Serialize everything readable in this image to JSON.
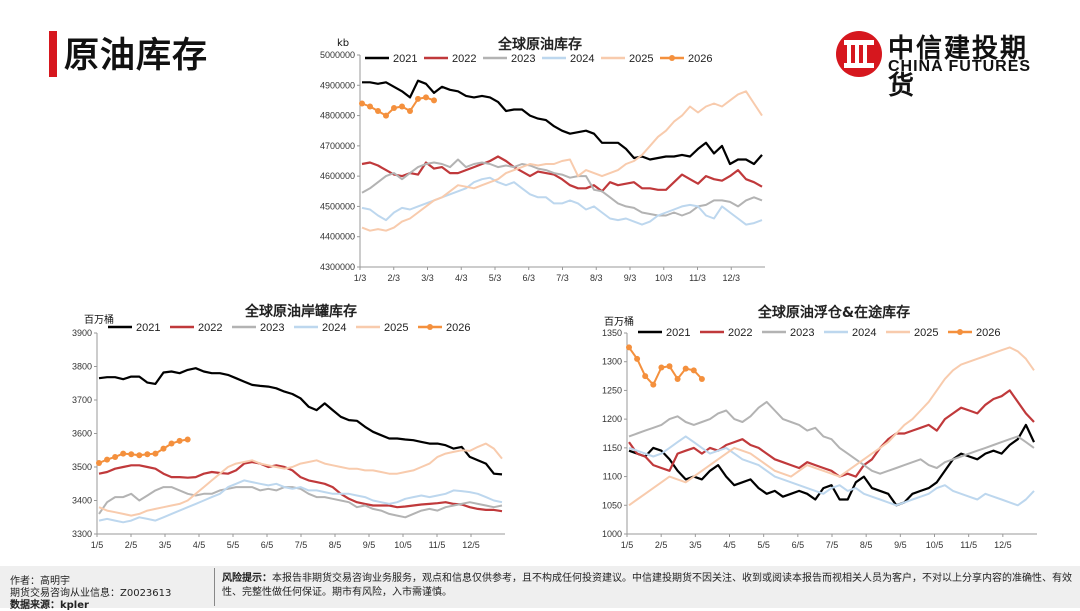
{
  "header": {
    "title": "原油库存"
  },
  "logo": {
    "cn": "中信建投期货",
    "en": "CHINA FUTURES"
  },
  "colors": {
    "2021": "#000000",
    "2022": "#c0393b",
    "2023": "#b3b3b3",
    "2024": "#bdd7ee",
    "2025": "#f8cbad",
    "2026": "#f4903d",
    "accent": "#d6171e"
  },
  "footer": {
    "author": "作者：高明宇",
    "license": "期货交易咨询从业信息：Z0023613",
    "source": "数据来源：kpler",
    "risk_label": "风险提示：",
    "risk_text": "本报告非期货交易咨询业务服务，观点和信息仅供参考，且不构成任何投资建议。中信建投期货不因关注、收到或阅读本报告而视相关人员为客户，不对以上分享内容的准确性、有效性、完整性做任何保证。期市有风险，入市需谨慎。"
  },
  "chart_data": [
    {
      "id": "global",
      "type": "line",
      "title": "全球原油库存",
      "unit": "kb",
      "ylim": [
        4300000,
        5000000
      ],
      "yticks": [
        "4300000",
        "4400000",
        "4500000",
        "4600000",
        "4700000",
        "4800000",
        "4900000",
        "5000000"
      ],
      "xticks": [
        "1/3",
        "2/3",
        "3/3",
        "4/3",
        "5/3",
        "6/3",
        "7/3",
        "8/3",
        "9/3",
        "10/3",
        "11/3",
        "12/3"
      ],
      "legend": [
        "2021",
        "2022",
        "2023",
        "2024",
        "2025",
        "2026"
      ],
      "legend_position": "top",
      "series": [
        {
          "name": "2021",
          "values": [
            4910000,
            4910000,
            4905000,
            4910000,
            4895000,
            4880000,
            4860000,
            4915000,
            4905000,
            4875000,
            4895000,
            4885000,
            4880000,
            4865000,
            4860000,
            4865000,
            4860000,
            4845000,
            4815000,
            4820000,
            4820000,
            4800000,
            4790000,
            4785000,
            4765000,
            4750000,
            4740000,
            4745000,
            4750000,
            4740000,
            4710000,
            4710000,
            4710000,
            4690000,
            4660000,
            4665000,
            4655000,
            4660000,
            4665000,
            4665000,
            4670000,
            4665000,
            4690000,
            4710000,
            4675000,
            4700000,
            4640000,
            4655000,
            4655000,
            4640000,
            4670000
          ]
        },
        {
          "name": "2022",
          "values": [
            4640000,
            4645000,
            4635000,
            4620000,
            4605000,
            4600000,
            4610000,
            4605000,
            4645000,
            4625000,
            4630000,
            4610000,
            4610000,
            4620000,
            4630000,
            4640000,
            4650000,
            4665000,
            4650000,
            4630000,
            4615000,
            4600000,
            4615000,
            4610000,
            4605000,
            4590000,
            4570000,
            4560000,
            4560000,
            4570000,
            4550000,
            4580000,
            4570000,
            4575000,
            4580000,
            4560000,
            4560000,
            4555000,
            4555000,
            4580000,
            4605000,
            4590000,
            4575000,
            4600000,
            4590000,
            4585000,
            4600000,
            4620000,
            4590000,
            4580000,
            4565000
          ]
        },
        {
          "name": "2023",
          "values": [
            4545000,
            4560000,
            4580000,
            4600000,
            4610000,
            4590000,
            4610000,
            4630000,
            4640000,
            4645000,
            4640000,
            4630000,
            4655000,
            4630000,
            4640000,
            4645000,
            4640000,
            4630000,
            4635000,
            4630000,
            4640000,
            4635000,
            4625000,
            4620000,
            4610000,
            4605000,
            4595000,
            4600000,
            4600000,
            4555000,
            4550000,
            4530000,
            4510000,
            4500000,
            4495000,
            4480000,
            4475000,
            4470000,
            4470000,
            4480000,
            4470000,
            4480000,
            4500000,
            4505000,
            4520000,
            4520000,
            4515000,
            4500000,
            4520000,
            4530000,
            4520000
          ]
        },
        {
          "name": "2024",
          "values": [
            4495000,
            4490000,
            4470000,
            4455000,
            4480000,
            4495000,
            4490000,
            4500000,
            4510000,
            4520000,
            4530000,
            4540000,
            4550000,
            4560000,
            4580000,
            4590000,
            4595000,
            4580000,
            4570000,
            4580000,
            4560000,
            4540000,
            4530000,
            4530000,
            4510000,
            4510000,
            4520000,
            4510000,
            4490000,
            4500000,
            4480000,
            4460000,
            4455000,
            4460000,
            4450000,
            4440000,
            4450000,
            4470000,
            4480000,
            4490000,
            4500000,
            4505000,
            4500000,
            4470000,
            4460000,
            4500000,
            4480000,
            4460000,
            4440000,
            4445000,
            4455000
          ]
        },
        {
          "name": "2025",
          "values": [
            4430000,
            4420000,
            4425000,
            4420000,
            4430000,
            4450000,
            4460000,
            4480000,
            4500000,
            4520000,
            4530000,
            4550000,
            4570000,
            4565000,
            4560000,
            4570000,
            4580000,
            4590000,
            4610000,
            4620000,
            4630000,
            4640000,
            4635000,
            4640000,
            4640000,
            4650000,
            4655000,
            4600000,
            4620000,
            4610000,
            4600000,
            4610000,
            4620000,
            4640000,
            4650000,
            4670000,
            4700000,
            4730000,
            4750000,
            4780000,
            4800000,
            4830000,
            4810000,
            4830000,
            4840000,
            4830000,
            4850000,
            4870000,
            4880000,
            4840000,
            4800000
          ]
        },
        {
          "name": "2026",
          "values": [
            4840000,
            4830000,
            4815000,
            4800000,
            4825000,
            4830000,
            4815000,
            4855000,
            4860000,
            4850000
          ]
        }
      ]
    },
    {
      "id": "tank",
      "type": "line",
      "title": "全球原油岸罐库存",
      "unit": "百万桶",
      "ylim": [
        3300,
        3900
      ],
      "yticks": [
        "3300",
        "3400",
        "3500",
        "3600",
        "3700",
        "3800",
        "3900"
      ],
      "xticks": [
        "1/5",
        "2/5",
        "3/5",
        "4/5",
        "5/5",
        "6/5",
        "7/5",
        "8/5",
        "9/5",
        "10/5",
        "11/5",
        "12/5"
      ],
      "legend": [
        "2021",
        "2022",
        "2023",
        "2024",
        "2025",
        "2026"
      ],
      "legend_position": "top",
      "series": [
        {
          "name": "2021",
          "values": [
            3765,
            3768,
            3768,
            3762,
            3770,
            3770,
            3752,
            3748,
            3782,
            3785,
            3780,
            3790,
            3795,
            3785,
            3780,
            3780,
            3775,
            3765,
            3755,
            3745,
            3742,
            3740,
            3735,
            3725,
            3718,
            3705,
            3680,
            3670,
            3690,
            3670,
            3650,
            3640,
            3638,
            3620,
            3605,
            3595,
            3585,
            3585,
            3582,
            3580,
            3575,
            3570,
            3570,
            3565,
            3555,
            3560,
            3530,
            3520,
            3510,
            3480,
            3478
          ]
        },
        {
          "name": "2022",
          "values": [
            3480,
            3485,
            3495,
            3500,
            3505,
            3505,
            3500,
            3495,
            3480,
            3470,
            3470,
            3468,
            3470,
            3480,
            3485,
            3482,
            3480,
            3490,
            3510,
            3515,
            3510,
            3500,
            3505,
            3500,
            3490,
            3470,
            3460,
            3455,
            3450,
            3440,
            3420,
            3405,
            3395,
            3390,
            3385,
            3385,
            3385,
            3380,
            3382,
            3385,
            3388,
            3390,
            3392,
            3395,
            3390,
            3388,
            3380,
            3375,
            3372,
            3372,
            3368
          ]
        },
        {
          "name": "2023",
          "values": [
            3360,
            3395,
            3410,
            3410,
            3420,
            3400,
            3415,
            3430,
            3440,
            3440,
            3430,
            3420,
            3415,
            3420,
            3420,
            3430,
            3435,
            3440,
            3440,
            3440,
            3430,
            3435,
            3430,
            3440,
            3440,
            3435,
            3420,
            3410,
            3410,
            3405,
            3400,
            3395,
            3380,
            3385,
            3375,
            3370,
            3360,
            3355,
            3350,
            3360,
            3370,
            3375,
            3370,
            3380,
            3385,
            3390,
            3395,
            3390,
            3385,
            3380,
            3385
          ]
        },
        {
          "name": "2024",
          "values": [
            3340,
            3345,
            3340,
            3335,
            3340,
            3350,
            3345,
            3340,
            3350,
            3360,
            3370,
            3380,
            3390,
            3400,
            3410,
            3420,
            3440,
            3450,
            3460,
            3455,
            3450,
            3445,
            3450,
            3440,
            3435,
            3440,
            3430,
            3430,
            3425,
            3420,
            3420,
            3420,
            3415,
            3410,
            3400,
            3395,
            3390,
            3395,
            3405,
            3410,
            3415,
            3410,
            3415,
            3420,
            3430,
            3428,
            3425,
            3420,
            3410,
            3400,
            3395
          ]
        },
        {
          "name": "2025",
          "values": [
            3380,
            3370,
            3365,
            3360,
            3355,
            3360,
            3370,
            3375,
            3380,
            3385,
            3390,
            3400,
            3420,
            3440,
            3460,
            3480,
            3500,
            3510,
            3515,
            3520,
            3510,
            3505,
            3500,
            3495,
            3500,
            3510,
            3515,
            3520,
            3510,
            3505,
            3500,
            3495,
            3495,
            3490,
            3490,
            3485,
            3480,
            3480,
            3485,
            3490,
            3500,
            3510,
            3530,
            3540,
            3545,
            3550,
            3548,
            3560,
            3570,
            3555,
            3525
          ]
        },
        {
          "name": "2026",
          "values": [
            3512,
            3522,
            3530,
            3540,
            3538,
            3535,
            3538,
            3540,
            3555,
            3570,
            3578,
            3582
          ]
        }
      ]
    },
    {
      "id": "floating",
      "type": "line",
      "title": "全球原油浮仓&在途库存",
      "unit": "百万桶",
      "ylim": [
        1000,
        1350
      ],
      "yticks": [
        "1000",
        "1050",
        "1100",
        "1150",
        "1200",
        "1250",
        "1300",
        "1350"
      ],
      "xticks": [
        "1/5",
        "2/5",
        "3/5",
        "4/5",
        "5/5",
        "6/5",
        "7/5",
        "8/5",
        "9/5",
        "10/5",
        "11/5",
        "12/5"
      ],
      "legend": [
        "2021",
        "2022",
        "2023",
        "2024",
        "2025",
        "2026"
      ],
      "legend_position": "top",
      "series": [
        {
          "name": "2021",
          "values": [
            1145,
            1140,
            1135,
            1150,
            1145,
            1130,
            1110,
            1095,
            1100,
            1095,
            1110,
            1120,
            1100,
            1085,
            1090,
            1095,
            1080,
            1070,
            1075,
            1065,
            1070,
            1075,
            1070,
            1060,
            1080,
            1085,
            1060,
            1060,
            1090,
            1100,
            1080,
            1075,
            1070,
            1050,
            1055,
            1070,
            1075,
            1080,
            1090,
            1110,
            1130,
            1140,
            1135,
            1130,
            1140,
            1145,
            1140,
            1155,
            1165,
            1190,
            1160
          ]
        },
        {
          "name": "2022",
          "values": [
            1160,
            1140,
            1135,
            1120,
            1115,
            1110,
            1140,
            1145,
            1150,
            1140,
            1150,
            1145,
            1155,
            1160,
            1165,
            1155,
            1150,
            1140,
            1130,
            1125,
            1120,
            1115,
            1125,
            1120,
            1115,
            1110,
            1100,
            1105,
            1100,
            1120,
            1130,
            1150,
            1165,
            1175,
            1175,
            1180,
            1185,
            1190,
            1180,
            1200,
            1210,
            1220,
            1215,
            1210,
            1225,
            1235,
            1240,
            1250,
            1230,
            1210,
            1195
          ]
        },
        {
          "name": "2023",
          "values": [
            1170,
            1175,
            1180,
            1185,
            1190,
            1200,
            1205,
            1195,
            1190,
            1195,
            1200,
            1210,
            1215,
            1200,
            1195,
            1205,
            1220,
            1230,
            1215,
            1200,
            1195,
            1190,
            1180,
            1185,
            1170,
            1165,
            1150,
            1140,
            1130,
            1120,
            1110,
            1105,
            1110,
            1115,
            1120,
            1125,
            1130,
            1120,
            1115,
            1125,
            1130,
            1135,
            1140,
            1145,
            1150,
            1155,
            1160,
            1165,
            1170,
            1160,
            1150
          ]
        },
        {
          "name": "2024",
          "values": [
            1150,
            1145,
            1140,
            1135,
            1140,
            1150,
            1160,
            1170,
            1160,
            1150,
            1140,
            1145,
            1150,
            1140,
            1130,
            1125,
            1120,
            1110,
            1100,
            1095,
            1090,
            1085,
            1080,
            1075,
            1070,
            1080,
            1085,
            1075,
            1080,
            1070,
            1065,
            1060,
            1055,
            1050,
            1055,
            1060,
            1065,
            1070,
            1080,
            1085,
            1075,
            1070,
            1065,
            1060,
            1070,
            1065,
            1060,
            1055,
            1050,
            1060,
            1075
          ]
        },
        {
          "name": "2025",
          "values": [
            1050,
            1060,
            1070,
            1080,
            1090,
            1100,
            1095,
            1090,
            1100,
            1110,
            1120,
            1130,
            1140,
            1150,
            1145,
            1140,
            1130,
            1120,
            1110,
            1105,
            1100,
            1110,
            1120,
            1115,
            1110,
            1105,
            1100,
            1110,
            1120,
            1130,
            1140,
            1150,
            1160,
            1175,
            1190,
            1200,
            1215,
            1230,
            1250,
            1270,
            1285,
            1295,
            1300,
            1305,
            1310,
            1315,
            1320,
            1325,
            1318,
            1305,
            1285
          ]
        },
        {
          "name": "2026",
          "values": [
            1325,
            1305,
            1275,
            1260,
            1290,
            1292,
            1270,
            1288,
            1285,
            1270
          ]
        }
      ]
    }
  ]
}
